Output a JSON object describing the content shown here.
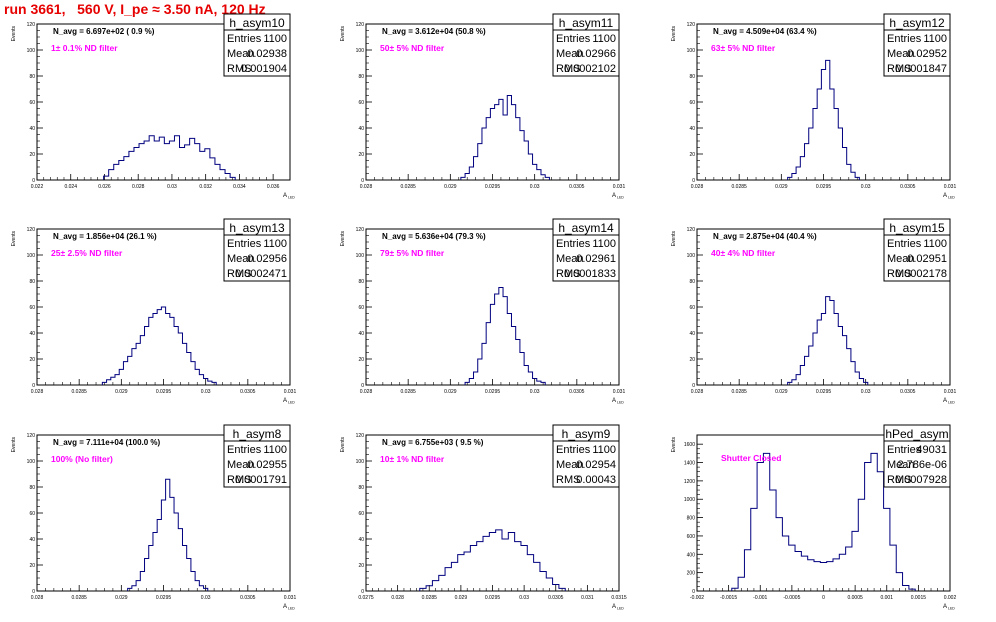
{
  "header": {
    "title": "run 3661,   560 V, I_pe ≈ 3.50 nA, 120 Hz"
  },
  "colors": {
    "hist_line": "#00007f",
    "annotation": "#ff00ff",
    "title": "#e60000",
    "axis": "#000000"
  },
  "chart_data": [
    {
      "type": "histogram",
      "name": "h_asym10",
      "stats": {
        "entries": "1100",
        "mean": "0.02938",
        "rms": "0.001904"
      },
      "navg_label": "N_avg = 6.697e+02 ( 0.9 %)",
      "filter_label": "1± 0.1% ND filter",
      "xlabel": "A",
      "xlabel_sub": "LED",
      "ylabel": "Events",
      "xlim": [
        0.022,
        0.037
      ],
      "ylim": [
        0,
        120
      ],
      "xticks": [
        0.022,
        0.024,
        0.026,
        0.028,
        0.03,
        0.032,
        0.034,
        0.036
      ],
      "xtick_labels": [
        "0.022",
        "0.024",
        "0.026",
        "0.028",
        "0.03",
        "0.032",
        "0.034",
        "0.036"
      ],
      "yticks": [
        0,
        20,
        40,
        60,
        80,
        100,
        120
      ],
      "ytick_labels": [
        "0",
        "20",
        "40",
        "60",
        "80",
        "100",
        "120"
      ],
      "x": [
        0.0261,
        0.0264,
        0.0267,
        0.027,
        0.0273,
        0.0276,
        0.0279,
        0.0282,
        0.0285,
        0.0288,
        0.0291,
        0.0294,
        0.0297,
        0.03,
        0.0303,
        0.0306,
        0.0309,
        0.0312,
        0.0315,
        0.0318,
        0.0321,
        0.0324,
        0.0327,
        0.033,
        0.0333,
        0.0336
      ],
      "values": [
        3,
        8,
        12,
        15,
        18,
        22,
        25,
        28,
        30,
        34,
        30,
        33,
        28,
        30,
        34,
        25,
        27,
        32,
        28,
        22,
        24,
        17,
        12,
        8,
        5,
        2
      ]
    },
    {
      "type": "histogram",
      "name": "h_asym11",
      "stats": {
        "entries": "1100",
        "mean": "0.02966",
        "rms": "0.0002102"
      },
      "navg_label": "N_avg = 3.612e+04 (50.8 %)",
      "filter_label": "50± 5% ND filter",
      "xlabel": "A",
      "xlabel_sub": "LED",
      "ylabel": "Events",
      "xlim": [
        0.028,
        0.031
      ],
      "ylim": [
        0,
        120
      ],
      "xticks": [
        0.028,
        0.0285,
        0.029,
        0.0295,
        0.03,
        0.0305,
        0.031
      ],
      "xtick_labels": [
        "0.028",
        "0.0285",
        "0.029",
        "0.0295",
        "0.03",
        "0.0305",
        "0.031"
      ],
      "yticks": [
        0,
        20,
        40,
        60,
        80,
        100,
        120
      ],
      "ytick_labels": [
        "0",
        "20",
        "40",
        "60",
        "80",
        "100",
        "120"
      ],
      "x": [
        0.02915,
        0.0292,
        0.02925,
        0.0293,
        0.02935,
        0.0294,
        0.02945,
        0.0295,
        0.02955,
        0.0296,
        0.02965,
        0.0297,
        0.02975,
        0.0298,
        0.02985,
        0.0299,
        0.02995,
        0.03,
        0.03005,
        0.0301,
        0.03015
      ],
      "values": [
        2,
        5,
        10,
        18,
        28,
        40,
        48,
        55,
        58,
        62,
        50,
        65,
        58,
        48,
        38,
        30,
        20,
        12,
        8,
        4,
        2
      ]
    },
    {
      "type": "histogram",
      "name": "h_asym12",
      "stats": {
        "entries": "1100",
        "mean": "0.02952",
        "rms": "0.0001847"
      },
      "navg_label": "N_avg = 4.509e+04 (63.4 %)",
      "filter_label": "63± 5% ND filter",
      "xlabel": "A",
      "xlabel_sub": "LED",
      "ylabel": "Events",
      "xlim": [
        0.028,
        0.031
      ],
      "ylim": [
        0,
        120
      ],
      "xticks": [
        0.028,
        0.0285,
        0.029,
        0.0295,
        0.03,
        0.0305,
        0.031
      ],
      "xtick_labels": [
        "0.028",
        "0.0285",
        "0.029",
        "0.0295",
        "0.03",
        "0.0305",
        "0.031"
      ],
      "yticks": [
        0,
        20,
        40,
        60,
        80,
        100,
        120
      ],
      "ytick_labels": [
        "0",
        "20",
        "40",
        "60",
        "80",
        "100",
        "120"
      ],
      "x": [
        0.0291,
        0.02915,
        0.0292,
        0.02925,
        0.0293,
        0.02935,
        0.0294,
        0.02945,
        0.0295,
        0.02955,
        0.0296,
        0.02965,
        0.0297,
        0.02975,
        0.0298,
        0.02985,
        0.0299
      ],
      "values": [
        2,
        5,
        10,
        18,
        28,
        40,
        55,
        70,
        85,
        92,
        70,
        55,
        40,
        25,
        12,
        6,
        2
      ]
    },
    {
      "type": "histogram",
      "name": "h_asym13",
      "stats": {
        "entries": "1100",
        "mean": "0.02956",
        "rms": "0.0002471"
      },
      "navg_label": "N_avg = 1.856e+04 (26.1 %)",
      "filter_label": "25± 2.5% ND filter",
      "xlabel": "A",
      "xlabel_sub": "LED",
      "ylabel": "Events",
      "xlim": [
        0.028,
        0.031
      ],
      "ylim": [
        0,
        120
      ],
      "xticks": [
        0.028,
        0.0285,
        0.029,
        0.0295,
        0.03,
        0.0305,
        0.031
      ],
      "xtick_labels": [
        "0.028",
        "0.0285",
        "0.029",
        "0.0295",
        "0.03",
        "0.0305",
        "0.031"
      ],
      "yticks": [
        0,
        20,
        40,
        60,
        80,
        100,
        120
      ],
      "ytick_labels": [
        "0",
        "20",
        "40",
        "60",
        "80",
        "100",
        "120"
      ],
      "x": [
        0.0288,
        0.02885,
        0.0289,
        0.02895,
        0.029,
        0.02905,
        0.0291,
        0.02915,
        0.0292,
        0.02925,
        0.0293,
        0.02935,
        0.0294,
        0.02945,
        0.0295,
        0.02955,
        0.0296,
        0.02965,
        0.0297,
        0.02975,
        0.0298,
        0.02985,
        0.0299,
        0.02995,
        0.03,
        0.03005,
        0.0301
      ],
      "values": [
        2,
        4,
        6,
        8,
        12,
        18,
        22,
        28,
        32,
        38,
        45,
        52,
        55,
        58,
        60,
        55,
        52,
        45,
        40,
        32,
        25,
        18,
        12,
        8,
        5,
        3,
        2
      ]
    },
    {
      "type": "histogram",
      "name": "h_asym14",
      "stats": {
        "entries": "1100",
        "mean": "0.02961",
        "rms": "0.0001833"
      },
      "navg_label": "N_avg = 5.636e+04 (79.3 %)",
      "filter_label": "79± 5% ND filter",
      "xlabel": "A",
      "xlabel_sub": "LED",
      "ylabel": "Events",
      "xlim": [
        0.028,
        0.031
      ],
      "ylim": [
        0,
        120
      ],
      "xticks": [
        0.028,
        0.0285,
        0.029,
        0.0295,
        0.03,
        0.0305,
        0.031
      ],
      "xtick_labels": [
        "0.028",
        "0.0285",
        "0.029",
        "0.0295",
        "0.03",
        "0.0305",
        "0.031"
      ],
      "yticks": [
        0,
        20,
        40,
        60,
        80,
        100,
        120
      ],
      "ytick_labels": [
        "0",
        "20",
        "40",
        "60",
        "80",
        "100",
        "120"
      ],
      "x": [
        0.0292,
        0.02925,
        0.0293,
        0.02935,
        0.0294,
        0.02945,
        0.0295,
        0.02955,
        0.0296,
        0.02965,
        0.0297,
        0.02975,
        0.0298,
        0.02985,
        0.0299,
        0.02995,
        0.03,
        0.03005,
        0.0301
      ],
      "values": [
        2,
        5,
        10,
        20,
        32,
        48,
        62,
        70,
        75,
        68,
        55,
        45,
        35,
        25,
        15,
        10,
        5,
        3,
        2
      ]
    },
    {
      "type": "histogram",
      "name": "h_asym15",
      "stats": {
        "entries": "1100",
        "mean": "0.02951",
        "rms": "0.0002178"
      },
      "navg_label": "N_avg = 2.875e+04 (40.4 %)",
      "filter_label": "40± 4% ND filter",
      "xlabel": "A",
      "xlabel_sub": "LED",
      "ylabel": "Events",
      "xlim": [
        0.028,
        0.031
      ],
      "ylim": [
        0,
        120
      ],
      "xticks": [
        0.028,
        0.0285,
        0.029,
        0.0295,
        0.03,
        0.0305,
        0.031
      ],
      "xtick_labels": [
        "0.028",
        "0.0285",
        "0.029",
        "0.0295",
        "0.03",
        "0.0305",
        "0.031"
      ],
      "yticks": [
        0,
        20,
        40,
        60,
        80,
        100,
        120
      ],
      "ytick_labels": [
        "0",
        "20",
        "40",
        "60",
        "80",
        "100",
        "120"
      ],
      "x": [
        0.0291,
        0.02915,
        0.0292,
        0.02925,
        0.0293,
        0.02935,
        0.0294,
        0.02945,
        0.0295,
        0.02955,
        0.0296,
        0.02965,
        0.0297,
        0.02975,
        0.0298,
        0.02985,
        0.0299,
        0.02995,
        0.03
      ],
      "values": [
        2,
        4,
        8,
        15,
        22,
        30,
        40,
        50,
        55,
        68,
        65,
        55,
        45,
        38,
        28,
        18,
        10,
        5,
        2
      ]
    },
    {
      "type": "histogram",
      "name": "h_asym8",
      "stats": {
        "entries": "1100",
        "mean": "0.02955",
        "rms": "0.0001791"
      },
      "navg_label": "N_avg = 7.111e+04 (100.0 %)",
      "filter_label": "100% (No filter)",
      "xlabel": "A",
      "xlabel_sub": "LED",
      "ylabel": "Events",
      "xlim": [
        0.028,
        0.031
      ],
      "ylim": [
        0,
        120
      ],
      "xticks": [
        0.028,
        0.0285,
        0.029,
        0.0295,
        0.03,
        0.0305,
        0.031
      ],
      "xtick_labels": [
        "0.028",
        "0.0285",
        "0.029",
        "0.0295",
        "0.03",
        "0.0305",
        "0.031"
      ],
      "yticks": [
        0,
        20,
        40,
        60,
        80,
        100,
        120
      ],
      "ytick_labels": [
        "0",
        "20",
        "40",
        "60",
        "80",
        "100",
        "120"
      ],
      "x": [
        0.0291,
        0.02915,
        0.0292,
        0.02925,
        0.0293,
        0.02935,
        0.0294,
        0.02945,
        0.0295,
        0.02955,
        0.0296,
        0.02965,
        0.0297,
        0.02975,
        0.0298,
        0.02985,
        0.0299,
        0.02995,
        0.03
      ],
      "values": [
        2,
        4,
        8,
        15,
        25,
        35,
        45,
        55,
        70,
        86,
        72,
        60,
        48,
        35,
        25,
        15,
        8,
        4,
        2
      ]
    },
    {
      "type": "histogram",
      "name": "h_asym9",
      "stats": {
        "entries": "1100",
        "mean": "0.02954",
        "rms": "0.00043"
      },
      "navg_label": "N_avg = 6.755e+03 ( 9.5 %)",
      "filter_label": "10± 1% ND filter",
      "xlabel": "A",
      "xlabel_sub": "LED",
      "ylabel": "Events",
      "xlim": [
        0.0275,
        0.0315
      ],
      "ylim": [
        0,
        120
      ],
      "xticks": [
        0.0275,
        0.028,
        0.0285,
        0.029,
        0.0295,
        0.03,
        0.0305,
        0.031,
        0.0315
      ],
      "xtick_labels": [
        "0.0275",
        "0.028",
        "0.0285",
        "0.029",
        "0.0295",
        "0.03",
        "0.0305",
        "0.031",
        "0.0315"
      ],
      "yticks": [
        0,
        20,
        40,
        60,
        80,
        100,
        120
      ],
      "ytick_labels": [
        "0",
        "20",
        "40",
        "60",
        "80",
        "100",
        "120"
      ],
      "x": [
        0.0284,
        0.0285,
        0.0286,
        0.0287,
        0.0288,
        0.0289,
        0.029,
        0.0291,
        0.0292,
        0.0293,
        0.0294,
        0.0295,
        0.0296,
        0.0297,
        0.0298,
        0.0299,
        0.03,
        0.0301,
        0.0302,
        0.0303,
        0.0304,
        0.0305,
        0.0306
      ],
      "values": [
        2,
        4,
        8,
        12,
        18,
        22,
        28,
        30,
        35,
        38,
        42,
        45,
        47,
        40,
        45,
        38,
        35,
        28,
        22,
        15,
        10,
        5,
        2
      ]
    },
    {
      "type": "histogram",
      "name": "hPed_asym",
      "stats": {
        "entries": "49031",
        "mean": "2.786e-06",
        "rms": "0.0007928"
      },
      "navg_label": "",
      "filter_label": "Shutter Closed",
      "xlabel": "A",
      "xlabel_sub": "LED",
      "ylabel": "Events",
      "xlim": [
        -0.002,
        0.002
      ],
      "ylim": [
        0,
        1700
      ],
      "xticks": [
        -0.002,
        -0.0015,
        -0.001,
        -0.0005,
        0,
        0.0005,
        0.001,
        0.0015,
        0.002
      ],
      "xtick_labels": [
        "-0.002",
        "-0.0015",
        "-0.001",
        "-0.0005",
        "0",
        "0.0005",
        "0.001",
        "0.0015",
        "0.002"
      ],
      "yticks": [
        0,
        200,
        400,
        600,
        800,
        1000,
        1200,
        1400,
        1600
      ],
      "ytick_labels": [
        "0",
        "200",
        "400",
        "600",
        "800",
        "1000",
        "1200",
        "1400",
        "1600"
      ],
      "x": [
        -0.0014,
        -0.0013,
        -0.0012,
        -0.0011,
        -0.001,
        -0.0009,
        -0.0008,
        -0.0007,
        -0.0006,
        -0.0005,
        -0.0004,
        -0.0003,
        -0.0002,
        -0.0001,
        0,
        0.0001,
        0.0002,
        0.0003,
        0.0004,
        0.0005,
        0.0006,
        0.0007,
        0.0008,
        0.0009,
        0.001,
        0.0011,
        0.0012,
        0.0013,
        0.0014
      ],
      "values": [
        30,
        150,
        450,
        900,
        1400,
        1500,
        1100,
        800,
        600,
        500,
        430,
        380,
        340,
        320,
        310,
        320,
        350,
        400,
        480,
        650,
        1000,
        1400,
        1500,
        1300,
        900,
        500,
        200,
        60,
        20
      ]
    }
  ]
}
